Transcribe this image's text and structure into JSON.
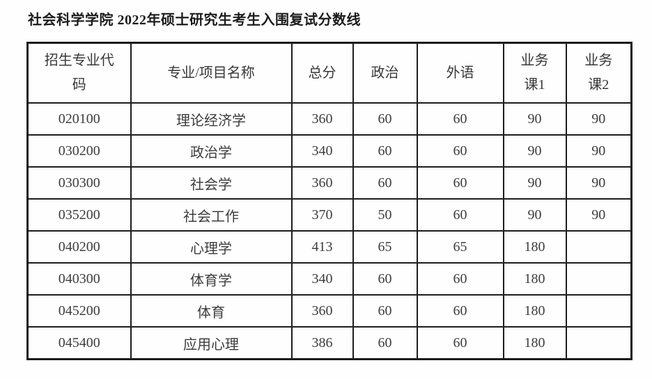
{
  "page": {
    "title": "社会科学学院 2022年硕士研究生考生入围复试分数线"
  },
  "colors": {
    "background": "#fefefe",
    "border": "#1d1d1d",
    "title_text": "#1c1c1c",
    "cell_text": "#3d3d3d"
  },
  "table": {
    "col_keys": [
      "code",
      "program-name",
      "total-score",
      "politics",
      "foreign-language",
      "course1",
      "course2"
    ],
    "headers": [
      {
        "label": "招生专业代\n码"
      },
      {
        "label": "专业/项目名称"
      },
      {
        "label": "总分"
      },
      {
        "label": "政治"
      },
      {
        "label": "外语"
      },
      {
        "label": "业务\n课1"
      },
      {
        "label": "业务\n课2"
      }
    ],
    "rows": [
      {
        "cells": [
          "020100",
          "理论经济学",
          "360",
          "60",
          "60",
          "90",
          "90"
        ]
      },
      {
        "cells": [
          "030200",
          "政治学",
          "340",
          "60",
          "60",
          "90",
          "90"
        ]
      },
      {
        "cells": [
          "030300",
          "社会学",
          "360",
          "60",
          "60",
          "90",
          "90"
        ]
      },
      {
        "cells": [
          "035200",
          "社会工作",
          "370",
          "50",
          "60",
          "90",
          "90"
        ]
      },
      {
        "cells": [
          "040200",
          "心理学",
          "413",
          "65",
          "65",
          "180",
          ""
        ]
      },
      {
        "cells": [
          "040300",
          "体育学",
          "340",
          "60",
          "60",
          "180",
          ""
        ]
      },
      {
        "cells": [
          "045200",
          "体育",
          "360",
          "60",
          "60",
          "180",
          ""
        ]
      },
      {
        "cells": [
          "045400",
          "应用心理",
          "386",
          "60",
          "60",
          "180",
          ""
        ]
      }
    ]
  }
}
